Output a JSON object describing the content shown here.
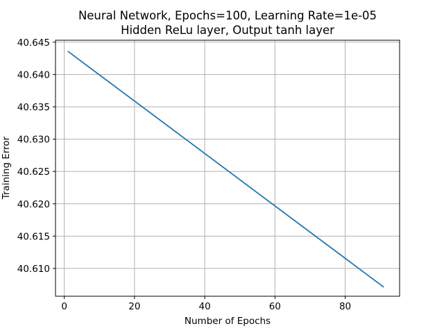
{
  "chart_data": {
    "type": "line",
    "title": "Neural Network, Epochs=100, Learning Rate=1e-05",
    "subtitle": "Hidden ReLu layer, Output tanh layer",
    "xlabel": "Number of Epochs",
    "ylabel": "Training Error",
    "xlim": [
      -2.5,
      95.5
    ],
    "ylim": [
      40.6057,
      40.6453
    ],
    "x_ticks": [
      0,
      20,
      40,
      60,
      80
    ],
    "y_ticks": [
      40.61,
      40.615,
      40.62,
      40.625,
      40.63,
      40.635,
      40.64,
      40.645
    ],
    "x_tick_labels": [
      "0",
      "20",
      "40",
      "60",
      "80"
    ],
    "y_tick_labels": [
      "40.610",
      "40.615",
      "40.620",
      "40.625",
      "40.630",
      "40.635",
      "40.640",
      "40.645"
    ],
    "grid": true,
    "series": [
      {
        "color": "#1f77b4",
        "x": [
          1,
          91
        ],
        "y": [
          40.6436,
          40.6071
        ]
      }
    ]
  }
}
